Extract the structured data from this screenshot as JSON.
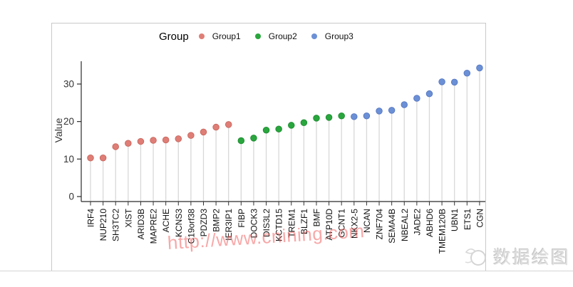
{
  "legend": {
    "title": "Group"
  },
  "watermark": {
    "text": "http://www.cnining.com",
    "color": "#f25c5c"
  },
  "logo": {
    "text": "数据绘图"
  },
  "chart_data": {
    "type": "lollipop",
    "title": "",
    "xlabel": "",
    "ylabel": "Value",
    "ylim": [
      0,
      36
    ],
    "yticks": [
      0,
      10,
      20,
      30
    ],
    "grid": false,
    "legend_title": "Group",
    "legend_position": "top",
    "groups": [
      {
        "name": "Group1",
        "color": "#DF7E76",
        "edge": "#C8655D"
      },
      {
        "name": "Group2",
        "color": "#29A63D",
        "edge": "#1E8C31"
      },
      {
        "name": "Group3",
        "color": "#6C90D6",
        "edge": "#5577C2"
      }
    ],
    "points": [
      {
        "gene": "IRF4",
        "value": 10.3,
        "group": "Group1"
      },
      {
        "gene": "NUP210",
        "value": 10.3,
        "group": "Group1"
      },
      {
        "gene": "SH3TC2",
        "value": 13.3,
        "group": "Group1"
      },
      {
        "gene": "XIST",
        "value": 14.2,
        "group": "Group1"
      },
      {
        "gene": "ARID3B",
        "value": 14.7,
        "group": "Group1"
      },
      {
        "gene": "MAPRE2",
        "value": 15.0,
        "group": "Group1"
      },
      {
        "gene": "ACHE",
        "value": 15.1,
        "group": "Group1"
      },
      {
        "gene": "KCNS3",
        "value": 15.4,
        "group": "Group1"
      },
      {
        "gene": "C19orf38",
        "value": 16.3,
        "group": "Group1"
      },
      {
        "gene": "PDZD3",
        "value": 17.2,
        "group": "Group1"
      },
      {
        "gene": "BMP2",
        "value": 18.5,
        "group": "Group1"
      },
      {
        "gene": "IER3IP1",
        "value": 19.2,
        "group": "Group1"
      },
      {
        "gene": "FIBP",
        "value": 14.9,
        "group": "Group2"
      },
      {
        "gene": "DOCK3",
        "value": 15.6,
        "group": "Group2"
      },
      {
        "gene": "DIS3L2",
        "value": 17.7,
        "group": "Group2"
      },
      {
        "gene": "KCTD15",
        "value": 18.0,
        "group": "Group2"
      },
      {
        "gene": "TREM1",
        "value": 19.0,
        "group": "Group2"
      },
      {
        "gene": "BLZF1",
        "value": 19.7,
        "group": "Group2"
      },
      {
        "gene": "BMF",
        "value": 20.9,
        "group": "Group2"
      },
      {
        "gene": "ATP10D",
        "value": 21.1,
        "group": "Group2"
      },
      {
        "gene": "GCNT1",
        "value": 21.5,
        "group": "Group2"
      },
      {
        "gene": "NKX2-5",
        "value": 21.3,
        "group": "Group3"
      },
      {
        "gene": "NCAN",
        "value": 21.5,
        "group": "Group3"
      },
      {
        "gene": "ZNF704",
        "value": 22.8,
        "group": "Group3"
      },
      {
        "gene": "SEMA4B",
        "value": 23.0,
        "group": "Group3"
      },
      {
        "gene": "NBEAL2",
        "value": 24.5,
        "group": "Group3"
      },
      {
        "gene": "JADE2",
        "value": 26.2,
        "group": "Group3"
      },
      {
        "gene": "ABHD6",
        "value": 27.4,
        "group": "Group3"
      },
      {
        "gene": "TMEM120B",
        "value": 30.6,
        "group": "Group3"
      },
      {
        "gene": "UBN1",
        "value": 30.5,
        "group": "Group3"
      },
      {
        "gene": "ETS1",
        "value": 32.9,
        "group": "Group3"
      },
      {
        "gene": "CGN",
        "value": 34.3,
        "group": "Group3"
      }
    ]
  }
}
